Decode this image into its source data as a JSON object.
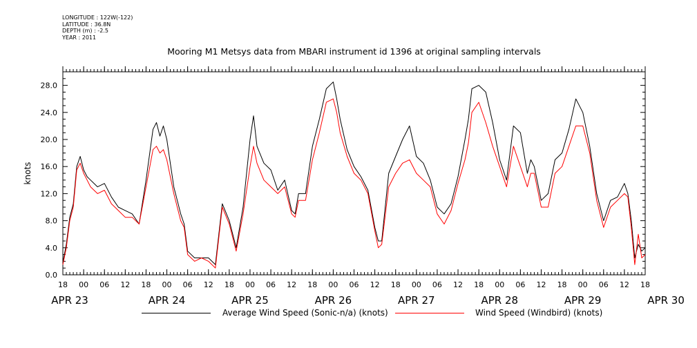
{
  "metadata": [
    "LONGITUDE : 122W(-122)",
    "LATITUDE : 36.8N",
    "DEPTH (m) : -2.5",
    "YEAR : 2011"
  ],
  "chart_data": {
    "type": "line",
    "title": "Mooring M1 Metsys data from MBARI instrument id 1396 at original sampling intervals",
    "ylabel": "knots",
    "xlabel": "",
    "ylim": [
      0,
      30
    ],
    "y_ticks": [
      "0.0",
      "4.0",
      "8.0",
      "12.0",
      "16.0",
      "20.0",
      "24.0",
      "28.0"
    ],
    "xlim_hours": [
      0,
      168
    ],
    "x_time_ticks": [
      "18",
      "00",
      "06",
      "12",
      "18",
      "00",
      "06",
      "12",
      "18",
      "00",
      "06",
      "12",
      "18",
      "00",
      "06",
      "12",
      "18",
      "00",
      "06",
      "12",
      "18",
      "00",
      "06",
      "12",
      "18",
      "00",
      "06",
      "12",
      "18"
    ],
    "x_date_labels": [
      "APR 23",
      "APR 24",
      "APR 25",
      "APR 26",
      "APR 27",
      "APR 28",
      "APR 29",
      "APR 30"
    ],
    "series": [
      {
        "name": "Average Wind Speed (Sonic-n/a) (knots)",
        "color": "#000000",
        "x_hours": [
          0,
          1,
          2,
          3,
          4,
          5,
          6,
          7,
          8,
          10,
          12,
          14,
          16,
          18,
          20,
          22,
          24,
          26,
          27,
          28,
          29,
          30,
          32,
          34,
          35,
          36,
          38,
          40,
          42,
          44,
          46,
          48,
          50,
          52,
          54,
          55,
          56,
          58,
          60,
          62,
          64,
          66,
          67,
          68,
          70,
          72,
          74,
          76,
          78,
          79,
          80,
          82,
          84,
          86,
          88,
          90,
          91,
          92,
          94,
          96,
          98,
          100,
          102,
          104,
          106,
          108,
          110,
          112,
          114,
          116,
          117,
          118,
          120,
          122,
          124,
          126,
          128,
          130,
          132,
          134,
          135,
          136,
          138,
          140,
          142,
          144,
          146,
          148,
          150,
          152,
          154,
          156,
          158,
          160,
          162,
          163,
          164,
          165,
          166,
          167,
          168
        ],
        "values": [
          1.8,
          4.5,
          8.5,
          10.5,
          16,
          17.5,
          15.5,
          14.5,
          14,
          13,
          13.5,
          11.5,
          10,
          9.5,
          9,
          7.5,
          14,
          21.5,
          22.5,
          20.5,
          22,
          20,
          13,
          9,
          7.5,
          3.5,
          2.5,
          2.5,
          2.5,
          1.5,
          10.5,
          8,
          4,
          10,
          20,
          23.5,
          19,
          16.5,
          15.5,
          12.5,
          14,
          9.5,
          9,
          12,
          12,
          19,
          23,
          27.5,
          28.5,
          26,
          23,
          18.5,
          16,
          14.5,
          12.5,
          7,
          5,
          5,
          15,
          17.5,
          20,
          22,
          17.5,
          16.5,
          14,
          10,
          9,
          10.5,
          14.5,
          20,
          23,
          27.5,
          28,
          27,
          22.5,
          17,
          14,
          22,
          21,
          15,
          17,
          16,
          11,
          12,
          17,
          18,
          21.5,
          26,
          24,
          19,
          12,
          8,
          11,
          11.5,
          13.5,
          12,
          8,
          2.5,
          4.5,
          3.5,
          4
        ]
      },
      {
        "name": "Wind Speed (Windbird) (knots)",
        "color": "#ff0000",
        "x_hours": [
          0,
          1,
          2,
          3,
          4,
          5,
          6,
          7,
          8,
          10,
          12,
          14,
          16,
          18,
          20,
          22,
          24,
          26,
          27,
          28,
          29,
          30,
          32,
          34,
          35,
          36,
          38,
          40,
          42,
          44,
          46,
          48,
          50,
          52,
          54,
          55,
          56,
          58,
          60,
          62,
          64,
          66,
          67,
          68,
          70,
          72,
          74,
          76,
          78,
          79,
          80,
          82,
          84,
          86,
          88,
          90,
          91,
          92,
          94,
          96,
          98,
          100,
          102,
          104,
          106,
          108,
          110,
          112,
          114,
          116,
          117,
          118,
          120,
          122,
          124,
          126,
          128,
          130,
          132,
          134,
          135,
          136,
          138,
          140,
          142,
          144,
          146,
          148,
          150,
          152,
          154,
          156,
          158,
          160,
          162,
          163,
          164,
          165,
          166,
          167,
          168
        ],
        "values": [
          1.5,
          4,
          8,
          10,
          15.5,
          16.5,
          15,
          14,
          13,
          12,
          12.5,
          10.5,
          9.5,
          8.5,
          8.5,
          7.5,
          13,
          18.5,
          19,
          18,
          18.5,
          17,
          12,
          8,
          7,
          3,
          2,
          2.5,
          2,
          1,
          10,
          7.5,
          3.5,
          9,
          16,
          19,
          16.5,
          14,
          13,
          12,
          13,
          9,
          8.5,
          11,
          11,
          17,
          21,
          25.5,
          26,
          24,
          21,
          17.5,
          15,
          14,
          12,
          6.5,
          4,
          4.5,
          13,
          15,
          16.5,
          17,
          15,
          14,
          13,
          9,
          7.5,
          9.5,
          13.5,
          17,
          19.5,
          24,
          25.5,
          22.5,
          19,
          16,
          13,
          19,
          16,
          13,
          15,
          15,
          10,
          10,
          15,
          16,
          19,
          22,
          22,
          18,
          11,
          7,
          10,
          11,
          12,
          11.5,
          7,
          1.5,
          6,
          2.5,
          3
        ]
      }
    ]
  },
  "legend": [
    {
      "label": "Average Wind Speed (Sonic-n/a) (knots)",
      "color": "#000000"
    },
    {
      "label": "Wind Speed (Windbird) (knots)",
      "color": "#ff0000"
    }
  ]
}
